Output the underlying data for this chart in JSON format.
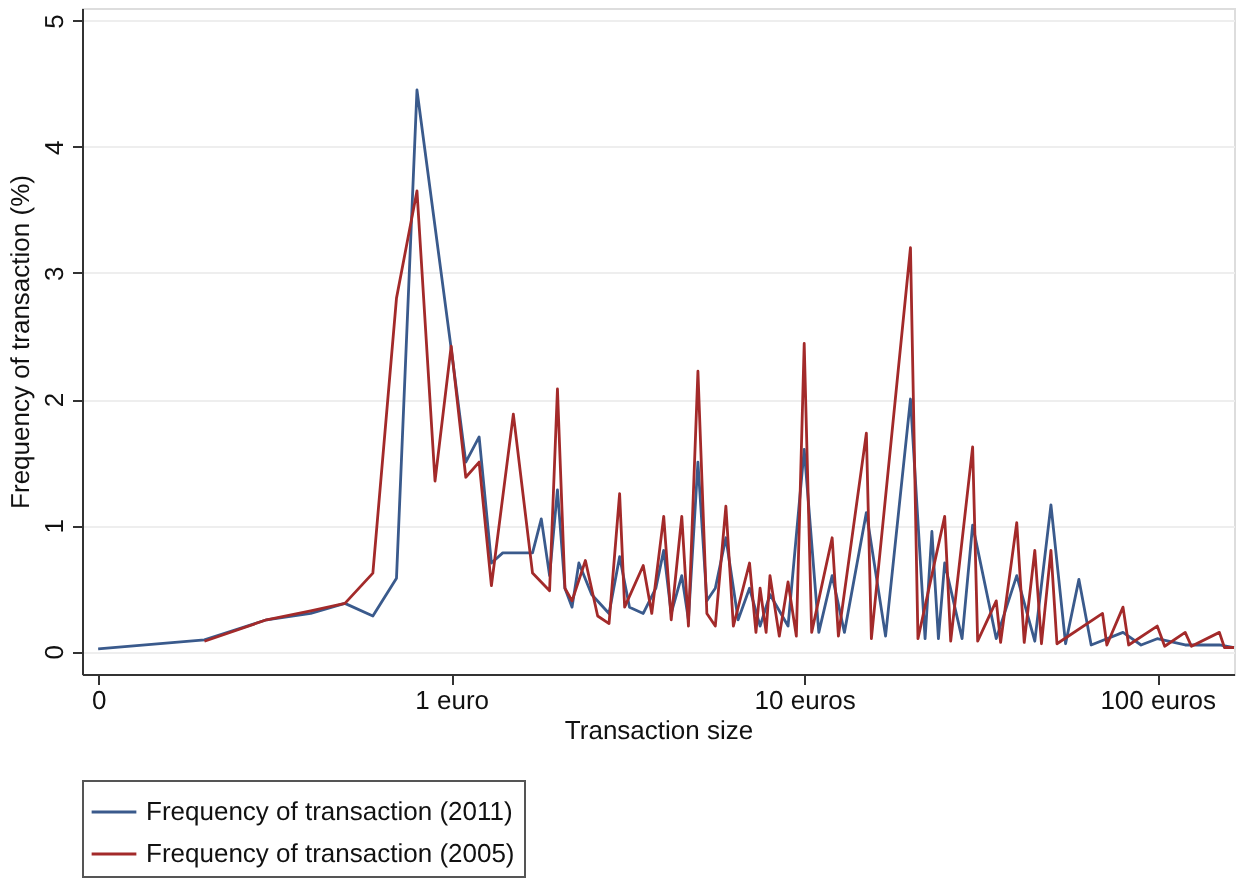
{
  "chart_data": {
    "type": "line",
    "xlabel": "Transaction size",
    "ylabel": "Frequency of transaction (%)",
    "log": "x",
    "xlim": [
      0.09,
      165
    ],
    "xticks": [
      {
        "value": 0.1,
        "label": "0"
      },
      {
        "value": 1,
        "label": "1 euro"
      },
      {
        "value": 10,
        "label": "10 euros"
      },
      {
        "value": 100,
        "label": "100 euros"
      }
    ],
    "ylim": [
      -0.18,
      5.1
    ],
    "yticks": [
      0,
      1,
      2,
      3,
      4,
      5
    ],
    "grid": "y",
    "legend": "bottom",
    "line_style": "solid",
    "marker": "none",
    "series": [
      {
        "name": "Frequency of transaction (2011)",
        "color": "#3a5a8c",
        "x": [
          0.1,
          0.2,
          0.3,
          0.4,
          0.5,
          0.6,
          0.7,
          0.8,
          1.0,
          1.1,
          1.2,
          1.3,
          1.4,
          1.7,
          1.8,
          1.9,
          2.0,
          2.1,
          2.2,
          2.3,
          2.5,
          2.8,
          3.0,
          3.2,
          3.5,
          3.8,
          4.0,
          4.2,
          4.5,
          4.7,
          5.0,
          5.3,
          5.6,
          6.0,
          6.5,
          7.0,
          7.5,
          8.0,
          9.0,
          10,
          11,
          12,
          13,
          15,
          17,
          20,
          22,
          23,
          24,
          25,
          28,
          30,
          35,
          40,
          45,
          50,
          55,
          60,
          65,
          80,
          90,
          100,
          120,
          150,
          165
        ],
        "values": [
          0.02,
          0.09,
          0.25,
          0.3,
          0.38,
          0.28,
          0.58,
          4.45,
          2.4,
          1.5,
          1.7,
          0.7,
          0.78,
          0.78,
          1.05,
          0.6,
          1.28,
          0.5,
          0.35,
          0.7,
          0.45,
          0.3,
          0.75,
          0.35,
          0.3,
          0.5,
          0.8,
          0.3,
          0.6,
          0.25,
          1.5,
          0.4,
          0.5,
          0.9,
          0.25,
          0.5,
          0.2,
          0.45,
          0.2,
          1.6,
          0.15,
          0.6,
          0.15,
          1.1,
          0.12,
          2.0,
          0.1,
          0.95,
          0.1,
          0.7,
          0.1,
          1.0,
          0.1,
          0.6,
          0.08,
          1.16,
          0.06,
          0.57,
          0.05,
          0.15,
          0.05,
          0.1,
          0.05,
          0.05,
          0.03
        ]
      },
      {
        "name": "Frequency of transaction (2005)",
        "color": "#a32a2a",
        "x": [
          0.2,
          0.3,
          0.4,
          0.5,
          0.6,
          0.7,
          0.8,
          0.9,
          1.0,
          1.1,
          1.2,
          1.3,
          1.5,
          1.7,
          1.9,
          2.0,
          2.1,
          2.2,
          2.4,
          2.6,
          2.8,
          3.0,
          3.1,
          3.5,
          3.7,
          4.0,
          4.2,
          4.5,
          4.7,
          5.0,
          5.3,
          5.6,
          6.0,
          6.3,
          7.0,
          7.3,
          7.5,
          7.8,
          8.0,
          8.5,
          9.0,
          9.5,
          10,
          10.5,
          12,
          12.5,
          15,
          15.5,
          20,
          21,
          25,
          26,
          30,
          31,
          35,
          36,
          40,
          42,
          45,
          47,
          50,
          52,
          70,
          72,
          80,
          83,
          100,
          105,
          120,
          125,
          150,
          155,
          165
        ],
        "values": [
          0.08,
          0.25,
          0.32,
          0.38,
          0.62,
          2.8,
          3.65,
          1.35,
          2.42,
          1.38,
          1.5,
          0.52,
          1.88,
          0.62,
          0.48,
          2.08,
          0.5,
          0.4,
          0.72,
          0.28,
          0.22,
          1.25,
          0.35,
          0.68,
          0.3,
          1.07,
          0.25,
          1.07,
          0.2,
          2.22,
          0.3,
          0.2,
          1.15,
          0.2,
          0.7,
          0.15,
          0.5,
          0.15,
          0.6,
          0.12,
          0.55,
          0.12,
          2.44,
          0.15,
          0.9,
          0.12,
          1.73,
          0.1,
          3.2,
          0.1,
          1.07,
          0.08,
          1.62,
          0.08,
          0.4,
          0.07,
          1.02,
          0.07,
          0.8,
          0.06,
          0.8,
          0.06,
          0.3,
          0.05,
          0.35,
          0.05,
          0.2,
          0.04,
          0.15,
          0.04,
          0.15,
          0.03,
          0.03
        ]
      }
    ]
  }
}
